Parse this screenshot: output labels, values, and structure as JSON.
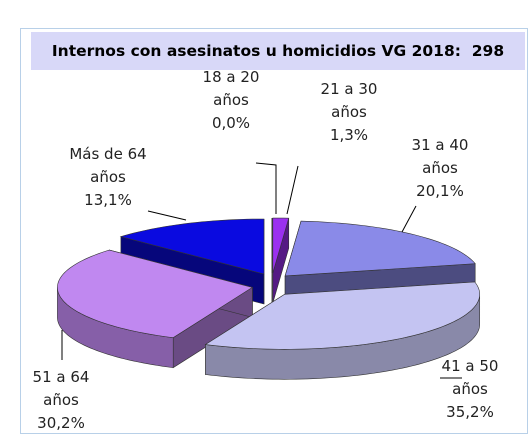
{
  "chart_data": {
    "type": "pie3d",
    "title": "Internos con asesinatos u homicidios VG 2018:  298",
    "categories": [
      "18 a 20 años",
      "21 a 30 años",
      "31 a 40 años",
      "41 a 50 años",
      "51 a 64 años",
      "Más de 64 años"
    ],
    "values": [
      0.0,
      1.3,
      20.1,
      35.2,
      30.2,
      13.1
    ],
    "value_labels": [
      "0,0%",
      "1,3%",
      "20,1%",
      "35,2%",
      "30,2%",
      "13,1%"
    ],
    "colors": [
      "#f0f0f4",
      "#9b30f0",
      "#8a8ae8",
      "#c4c4f2",
      "#c088f0",
      "#0a0ae0"
    ]
  }
}
